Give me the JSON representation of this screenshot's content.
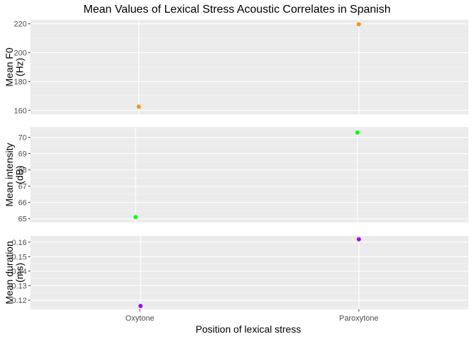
{
  "chart_data": {
    "type": "scatter",
    "title": "Mean Values of Lexical Stress Acoustic Correlates in Spanish",
    "xlabel": "Position of lexical stress",
    "categories": [
      "Oxytone",
      "Paroxytone"
    ],
    "grid": true,
    "legend": "none",
    "panels": [
      {
        "ylabel_lines": [
          "Mean F0",
          "(Hz)"
        ],
        "ylim": [
          157.2,
          222.8
        ],
        "yticks": [
          160,
          180,
          200,
          220
        ],
        "ytick_labels": [
          "160",
          "180",
          "200",
          "220"
        ],
        "points": [
          {
            "category": "Oxytone",
            "y": 162.6
          },
          {
            "category": "Paroxytone",
            "y": 219.7
          }
        ],
        "color": "#f7941d"
      },
      {
        "ylabel_lines": [
          "Mean intensity",
          "(dB)"
        ],
        "ylim": [
          64.77,
          70.63
        ],
        "yticks": [
          65,
          66,
          67,
          68,
          69,
          70
        ],
        "ytick_labels": [
          "65",
          "66",
          "67",
          "68",
          "69",
          "70"
        ],
        "points": [
          {
            "category": "Oxytone",
            "y": 65.1
          },
          {
            "category": "Paroxytone",
            "y": 70.3
          }
        ],
        "color": "#00ff00"
      },
      {
        "ylabel_lines": [
          "Mean duration",
          "(ms)"
        ],
        "ylim": [
          0.1137,
          0.1643
        ],
        "yticks": [
          0.12,
          0.13,
          0.14,
          0.15,
          0.16
        ],
        "ytick_labels": [
          "0.12",
          "0.13",
          "0.14",
          "0.15",
          "0.16"
        ],
        "points": [
          {
            "category": "Oxytone",
            "y": 0.116
          },
          {
            "category": "Paroxytone",
            "y": 0.162
          }
        ],
        "color": "#9b00ff"
      }
    ]
  }
}
